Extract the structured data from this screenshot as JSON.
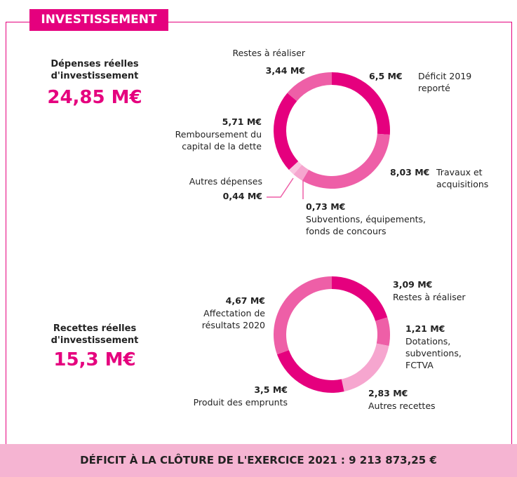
{
  "header": {
    "title": "INVESTISSEMENT"
  },
  "chart_data": [
    {
      "type": "donut",
      "title": "Dépenses réelles d'investissement",
      "total": 24.85,
      "total_label": "24,85 M€",
      "categories": [
        "Déficit 2019 reporté",
        "Travaux et acquisitions",
        "Subventions, équipements, fonds de concours",
        "Autres dépenses",
        "Remboursement du capital de la dette",
        "Restes à réaliser"
      ],
      "values": [
        6.5,
        8.03,
        0.73,
        0.44,
        5.71,
        3.44
      ],
      "value_labels": [
        "6,5 M€",
        "8,03 M€",
        "0,73 M€",
        "0,44 M€",
        "5,71 M€",
        "3,44 M€"
      ],
      "colors": [
        "#e5007e",
        "#ee5fa7",
        "#f6a6cf",
        "#f9c4df",
        "#e5007e",
        "#ee5fa7"
      ]
    },
    {
      "type": "donut",
      "title": "Recettes réelles d'investissement",
      "total": 15.3,
      "total_label": "15,3 M€",
      "categories": [
        "Restes à réaliser",
        "Dotations, subventions, FCTVA",
        "Autres recettes",
        "Produit des emprunts",
        "Affectation de résultats 2020"
      ],
      "values": [
        3.09,
        1.21,
        2.83,
        3.5,
        4.67
      ],
      "value_labels": [
        "3,09 M€",
        "1,21 M€",
        "2,83 M€",
        "3,5 M€",
        "4,67 M€"
      ],
      "colors": [
        "#e5007e",
        "#ee5fa7",
        "#f6a6cf",
        "#e5007e",
        "#ee5fa7"
      ]
    }
  ],
  "footer": {
    "text": "DÉFICIT À LA CLÔTURE DE L'EXERCICE 2021 : 9 213 873,25 €"
  }
}
